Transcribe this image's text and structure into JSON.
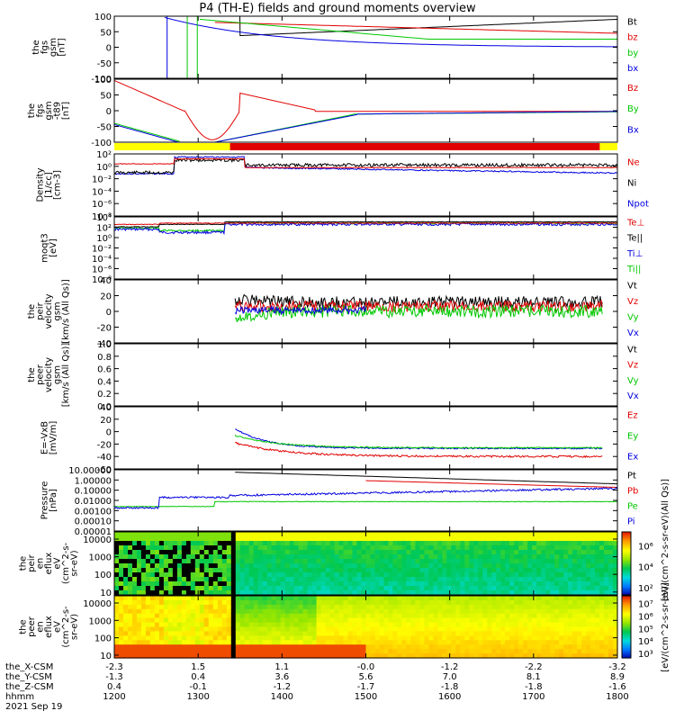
{
  "title": "P4 (TH-E) fields and ground moments overview",
  "panels": [
    {
      "id": "fgs",
      "ylabel": [
        "the",
        "fgs",
        "gsm",
        "[nT]"
      ],
      "yticks": [
        "100",
        "50",
        "0",
        "-50",
        "-100"
      ],
      "ylim": [
        -100,
        100
      ],
      "legend": [
        {
          "label": "Bt",
          "color": "#000000"
        },
        {
          "label": "bz",
          "color": "#e00000"
        },
        {
          "label": "by",
          "color": "#00c800"
        },
        {
          "label": "bx",
          "color": "#0000e0"
        }
      ]
    },
    {
      "id": "fgs-dc",
      "ylabel": [
        "the",
        "fgs",
        "gsm",
        "-t89",
        "[nT]"
      ],
      "yticks": [
        "100",
        "50",
        "0",
        "-50",
        "-100"
      ],
      "ylim": [
        -125,
        125
      ],
      "legend": [
        {
          "label": "Bz",
          "color": "#e00000"
        },
        {
          "label": "By",
          "color": "#00c800"
        },
        {
          "label": "Bx",
          "color": "#0000e0"
        }
      ]
    },
    {
      "id": "density",
      "ylabel": [
        "Density",
        "[1/cc]",
        "[cm-3]"
      ],
      "yticks": [
        "10²",
        "10⁰",
        "10⁻²",
        "10⁻⁴",
        "10⁻⁶",
        "10⁻⁸"
      ],
      "ylim": [
        -8,
        2
      ],
      "log": true,
      "legend": [
        {
          "label": "Ne",
          "color": "#e00000"
        },
        {
          "label": "Ni",
          "color": "#000000"
        },
        {
          "label": "Npot",
          "color": "#0000e0"
        }
      ]
    },
    {
      "id": "temperature",
      "ylabel": [
        "moqt3",
        "[eV]"
      ],
      "yticks": [
        "10⁴",
        "10²",
        "10⁰",
        "10⁻²",
        "10⁻⁴",
        "10⁻⁶",
        "10⁻⁸"
      ],
      "ylim": [
        -8,
        4
      ],
      "log": true,
      "legend": [
        {
          "label": "Te⊥",
          "color": "#e00000"
        },
        {
          "label": "Te||",
          "color": "#000000"
        },
        {
          "label": "Ti⊥",
          "color": "#0000e0"
        },
        {
          "label": "Ti||",
          "color": "#00c800"
        }
      ]
    },
    {
      "id": "peir-velocity",
      "ylabel": [
        "the",
        "peir",
        "velocity",
        "gsm",
        "[km/s (All Qs)]"
      ],
      "yticks": [
        "40",
        "20",
        "0",
        "-20",
        "-40"
      ],
      "ylim": [
        -40,
        40
      ],
      "legend": [
        {
          "label": "Vt",
          "color": "#000000"
        },
        {
          "label": "Vz",
          "color": "#e00000"
        },
        {
          "label": "Vy",
          "color": "#00c800"
        },
        {
          "label": "Vx",
          "color": "#0000e0"
        }
      ]
    },
    {
      "id": "peer-velocity",
      "ylabel": [
        "the",
        "peer",
        "velocity",
        "gsm",
        "[km/s (All Qs)]"
      ],
      "yticks": [
        "1.0",
        "0.8",
        "0.6",
        "0.4",
        "0.2",
        "0.0"
      ],
      "ylim": [
        0,
        1
      ],
      "legend": [
        {
          "label": "Vt",
          "color": "#000000"
        },
        {
          "label": "Vz",
          "color": "#e00000"
        },
        {
          "label": "Vy",
          "color": "#00c800"
        },
        {
          "label": "Vx",
          "color": "#0000e0"
        }
      ]
    },
    {
      "id": "efield",
      "ylabel": [
        "E=-VxB",
        "[mV/m]"
      ],
      "yticks": [
        "40",
        "20",
        "0",
        "-20",
        "-40",
        "-60"
      ],
      "ylim": [
        -60,
        40
      ],
      "legend": [
        {
          "label": "Ez",
          "color": "#e00000"
        },
        {
          "label": "Ey",
          "color": "#00c800"
        },
        {
          "label": "Ex",
          "color": "#0000e0"
        }
      ]
    },
    {
      "id": "pressure",
      "ylabel": [
        "Pressure",
        "[nPa]"
      ],
      "yticks": [
        "10.00000",
        "1.00000",
        "0.10000",
        "0.01000",
        "0.00100",
        "0.00010",
        "0.00001"
      ],
      "ylim": [
        -5,
        1
      ],
      "log": true,
      "legend": [
        {
          "label": "Pt",
          "color": "#000000"
        },
        {
          "label": "Pb",
          "color": "#e00000"
        },
        {
          "label": "Pe",
          "color": "#00c800"
        },
        {
          "label": "Pi",
          "color": "#0000e0"
        }
      ]
    },
    {
      "id": "peir-spectrogram",
      "ylabel": [
        "the",
        "peir",
        "en",
        "eflux",
        "eV",
        "(cm^2-s-",
        "sr-eV)"
      ],
      "yticks": [
        "10000",
        "1000",
        "100",
        "10"
      ],
      "colorbar_ticks": [
        "10⁶",
        "10⁴",
        "10²"
      ],
      "colorbar_label": "[eV/(cm^2-s-sr-eV)(All Qs)]"
    },
    {
      "id": "peer-spectrogram",
      "ylabel": [
        "the",
        "peer",
        "en",
        "eflux",
        "eV",
        "(cm^2-s-",
        "sr-eV)"
      ],
      "yticks": [
        "10000",
        "1000",
        "100",
        "10"
      ],
      "colorbar_ticks": [
        "10⁷",
        "10⁶",
        "10⁵",
        "10⁴",
        "10³"
      ],
      "colorbar_label": "[eV/(cm^2-s-sr-eV)]"
    }
  ],
  "colors": {
    "black": "#000000",
    "red": "#e00000",
    "green": "#00c800",
    "blue": "#0000e0",
    "yellow": "#ffff00"
  },
  "time_axis": {
    "rows": [
      {
        "label": "the_X-CSM",
        "values": [
          "-2.3",
          "1.5",
          "1.1",
          "-0.0",
          "-1.2",
          "-2.2",
          "-3.2"
        ]
      },
      {
        "label": "the_Y-CSM",
        "values": [
          "-1.3",
          "0.4",
          "3.6",
          "5.6",
          "7.0",
          "8.1",
          "8.9"
        ]
      },
      {
        "label": "the_Z-CSM",
        "values": [
          "0.4",
          "-0.1",
          "-1.2",
          "-1.7",
          "-1.8",
          "-1.8",
          "-1.6"
        ]
      },
      {
        "label": "hhmm",
        "values": [
          "1200",
          "1300",
          "1400",
          "1500",
          "1600",
          "1700",
          "1800"
        ]
      }
    ],
    "date": "2021 Sep 19"
  },
  "chart_data": {
    "type": "line",
    "x": [
      "1200",
      "1300",
      "1400",
      "1500",
      "1600",
      "1700",
      "1800"
    ],
    "xlabel": "hhmm",
    "series": [
      {
        "name": "Bt",
        "panel": "fgs",
        "values": [
          null,
          null,
          null,
          150,
          90,
          55,
          35
        ]
      },
      {
        "name": "bz",
        "panel": "fgs",
        "values": [
          null,
          null,
          null,
          90,
          60,
          40,
          28
        ]
      },
      {
        "name": "by",
        "panel": "fgs",
        "values": [
          null,
          null,
          null,
          70,
          45,
          30,
          22
        ]
      },
      {
        "name": "bx",
        "panel": "fgs",
        "values": [
          null,
          null,
          30,
          15,
          8,
          5,
          3
        ]
      },
      {
        "name": "Bz",
        "panel": "fgs-dc",
        "values": [
          100,
          -120,
          40,
          0,
          0,
          0,
          0
        ]
      },
      {
        "name": "By",
        "panel": "fgs-dc",
        "values": [
          -20,
          -120,
          -20,
          -5,
          0,
          0,
          0
        ]
      },
      {
        "name": "Bx",
        "panel": "fgs-dc",
        "values": [
          -40,
          -120,
          -30,
          -5,
          0,
          0,
          0
        ]
      },
      {
        "name": "Pt",
        "panel": "pressure",
        "values": [
          null,
          null,
          10,
          4,
          1.5,
          0.6,
          0.3
        ]
      },
      {
        "name": "Pi",
        "panel": "pressure",
        "values": [
          0.01,
          0.02,
          0.05,
          0.1,
          0.12,
          0.15,
          0.18
        ]
      }
    ]
  }
}
